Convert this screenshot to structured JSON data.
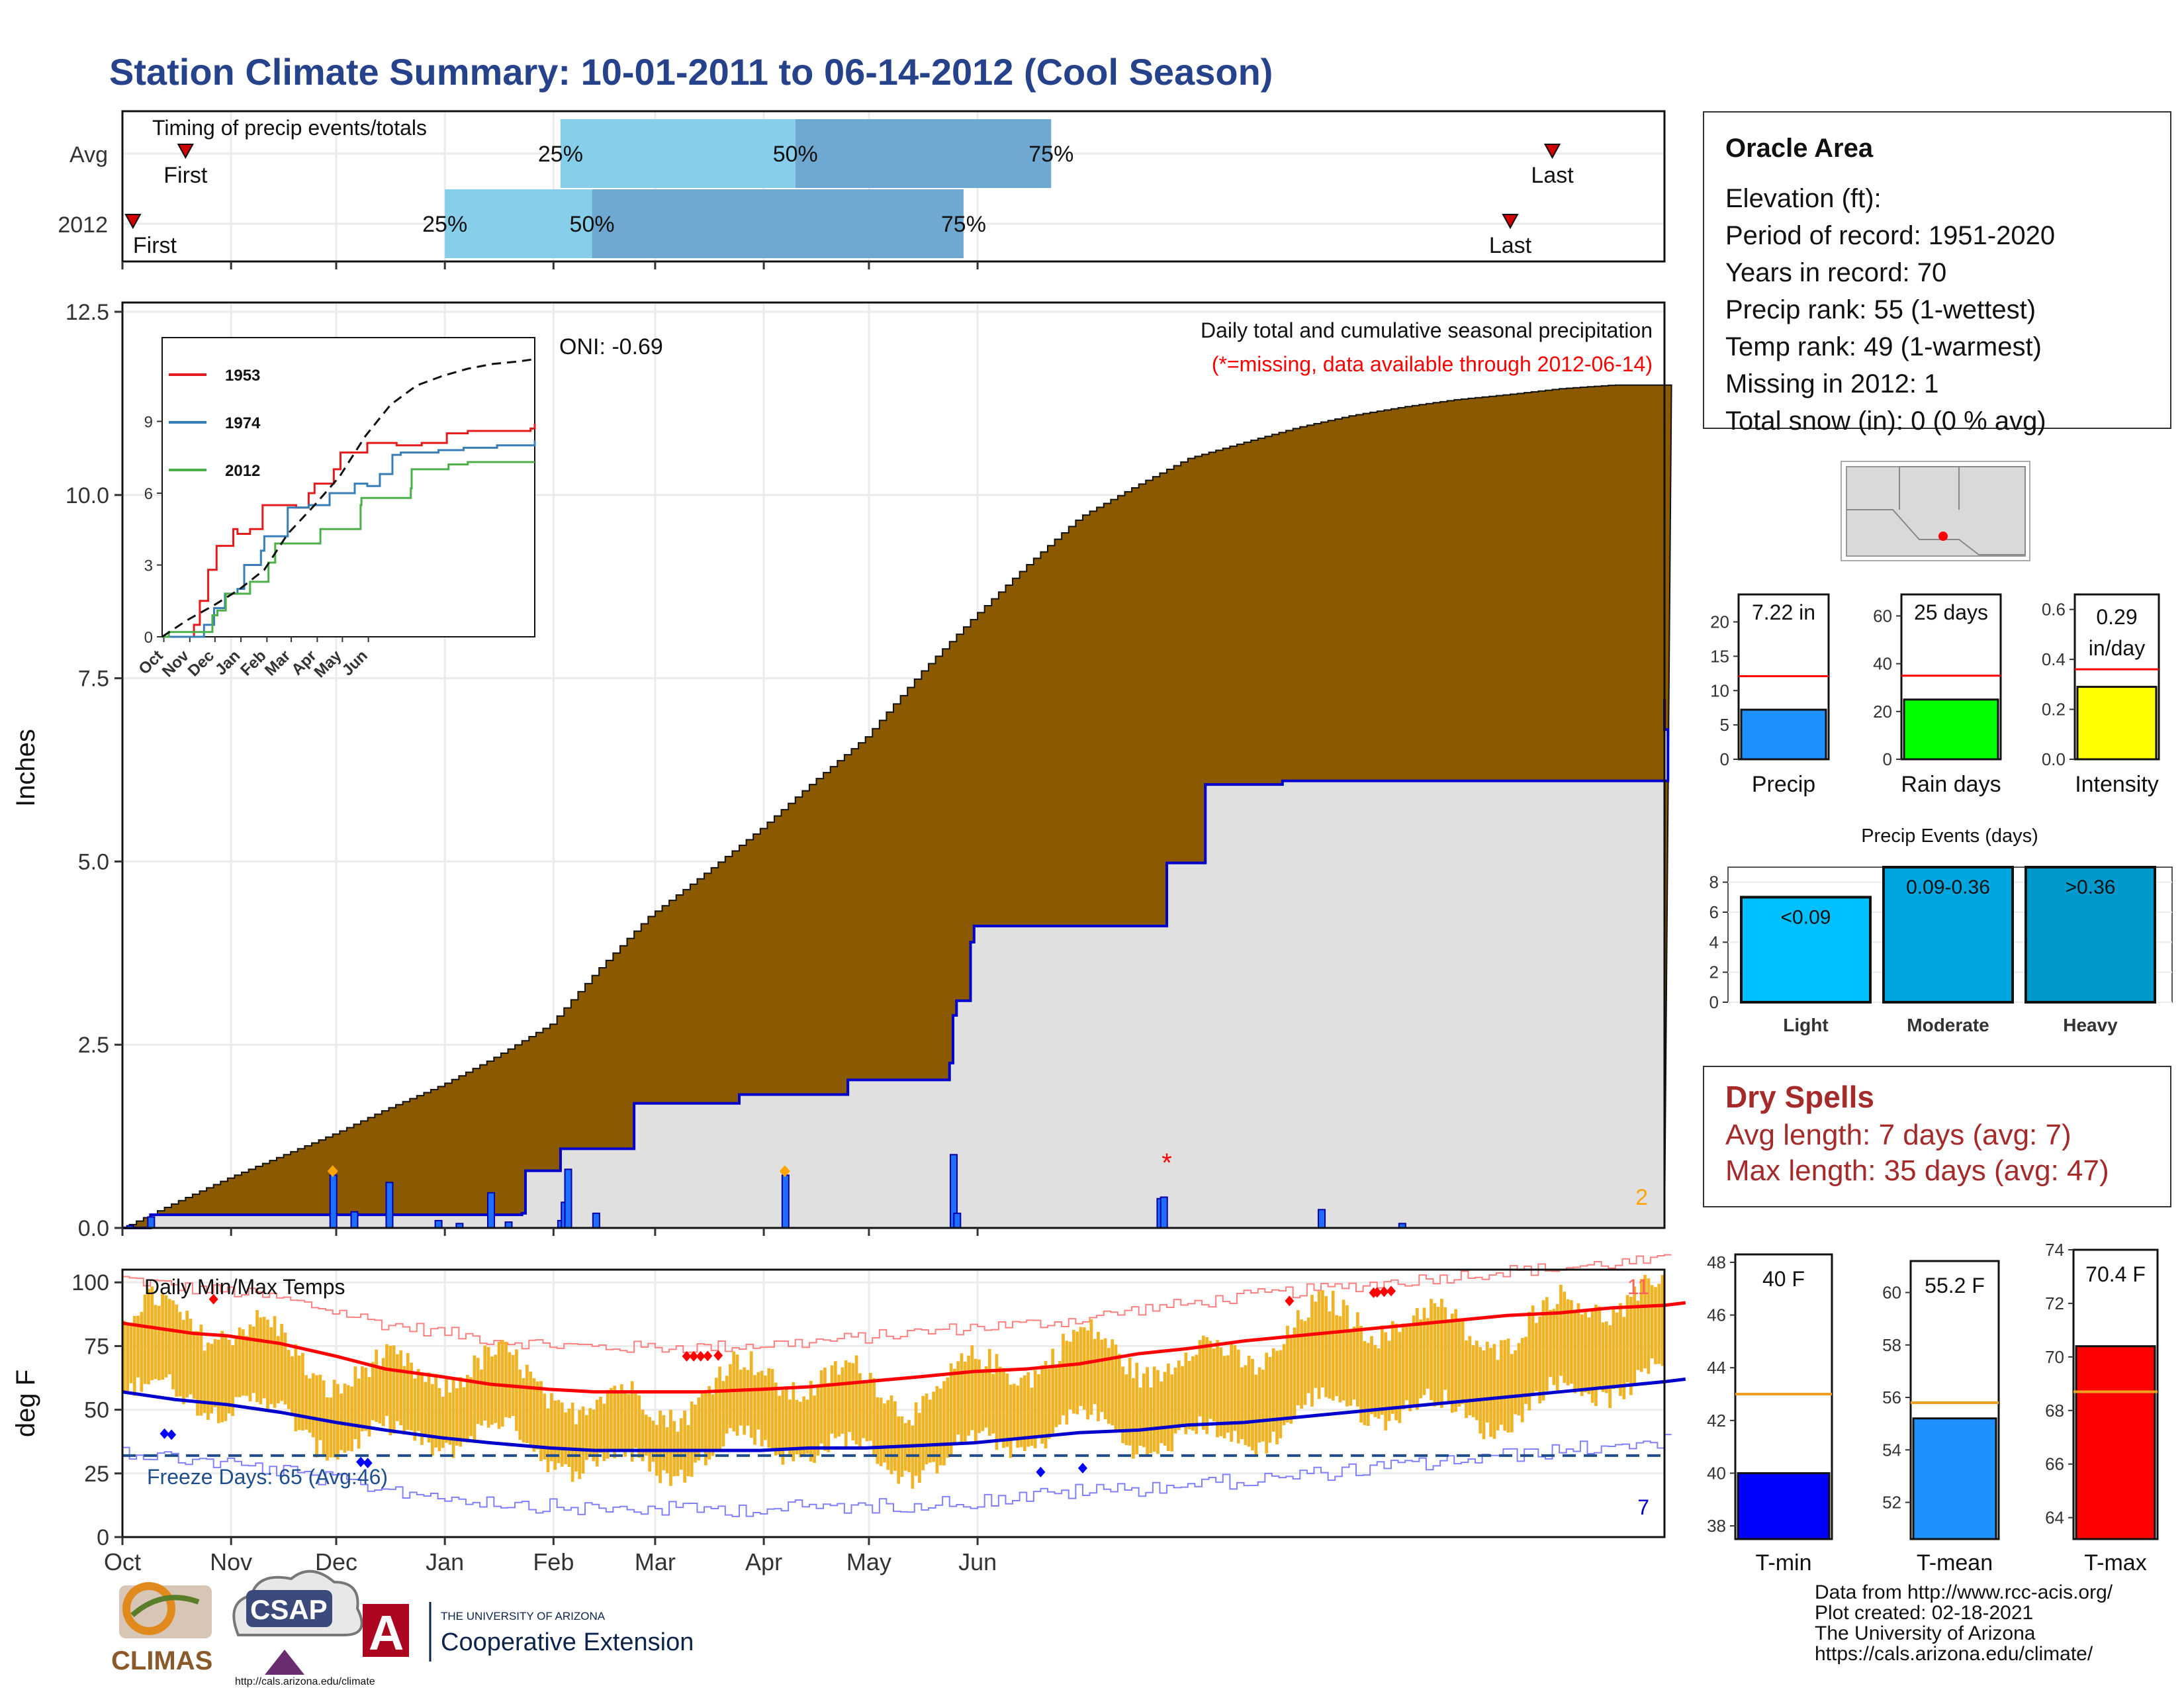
{
  "title": "Station Climate Summary: 10-01-2011 to 06-14-2012 (Cool Season)",
  "timing_panel": {
    "label": "Timing of precip events/totals",
    "rows": [
      {
        "name": "Avg",
        "first_label": "First",
        "first_day": 18,
        "q25_label": "25%",
        "q25_day": 125,
        "q50_label": "50%",
        "q50_day": 192,
        "q75_label": "75%",
        "q75_day": 265,
        "last_label": "Last",
        "last_day": 408
      },
      {
        "name": "2012",
        "first_label": "First",
        "first_day": 3,
        "q25_label": "25%",
        "q25_day": 92,
        "q50_label": "50%",
        "q50_day": 134,
        "q75_label": "75%",
        "q75_day": 240,
        "last_label": "Last",
        "last_day": 396
      }
    ]
  },
  "station_info": {
    "name": "Oracle Area",
    "lines": [
      "Elevation (ft):",
      "Period of record: 1951-2020",
      "Years in record: 70",
      "Precip rank: 55 (1-wettest)",
      "Temp rank: 49 (1-warmest)",
      "Missing in 2012: 1",
      "Total snow (in): 0 (0 % avg)"
    ]
  },
  "dry_spells": {
    "title": "Dry Spells",
    "avg_line": "Avg length: 7 days (avg: 7)",
    "max_line": "Max length: 35 days (avg: 47)"
  },
  "footer": {
    "lines": [
      "Data from http://www.rcc-acis.org/",
      "Plot created: 02-18-2021",
      "The University of Arizona",
      "https://cals.arizona.edu/climate/"
    ],
    "logos": {
      "climas": "CLIMAS",
      "csap": "CSAP",
      "csap_url": "http://cals.arizona.edu/climate",
      "ua_letter": "A",
      "ua_small": "THE UNIVERSITY OF ARIZONA",
      "ua_big": "Cooperative Extension"
    }
  },
  "colors": {
    "title": "#26428b",
    "cum_avg_fill": "#8b5a00",
    "cum_season_fill": "#e0e0e0",
    "cum_line": "#0000cc",
    "above_avg_fill": "#008000",
    "temp_bar": "#f0b323",
    "max_line": "#ff0000",
    "min_line": "#0000cc",
    "quartile_light": "#87ceeb",
    "quartile_dark": "#6fa8d0"
  },
  "chart_data": [
    {
      "id": "cumulative_precip",
      "type": "area",
      "subtitle": "Daily total and cumulative seasonal precipitation",
      "note": "(*=missing, data available through 2012-06-14)",
      "oni_label": "ONI: -0.69",
      "ylabel": "Inches",
      "ylim": [
        0,
        12.5
      ],
      "yticks": [
        0.0,
        2.5,
        5.0,
        7.5,
        10.0,
        12.5
      ],
      "x_months": [
        "Oct",
        "Nov",
        "Dec",
        "Jan",
        "Feb",
        "Mar",
        "Apr",
        "May",
        "Jun"
      ],
      "avg_cumulative": {
        "x": [
          0,
          15,
          30,
          45,
          61,
          75,
          91,
          105,
          122,
          135,
          150,
          165,
          182,
          196,
          212,
          228,
          243,
          258,
          273,
          290,
          304,
          320,
          335,
          350,
          365,
          380,
          395,
          410,
          425
        ],
        "y": [
          0.0,
          0.35,
          0.68,
          0.98,
          1.3,
          1.62,
          1.95,
          2.3,
          2.78,
          3.5,
          4.25,
          4.8,
          5.45,
          6.05,
          6.7,
          7.6,
          8.35,
          9.05,
          9.7,
          10.15,
          10.5,
          10.72,
          10.92,
          11.08,
          11.2,
          11.3,
          11.37,
          11.45,
          11.5
        ]
      },
      "season_cumulative": {
        "x": [
          0,
          8,
          114,
          115,
          124,
          125,
          145,
          146,
          175,
          176,
          206,
          207,
          235,
          236,
          237,
          238,
          242,
          243,
          297,
          298,
          308,
          309,
          330,
          331,
          440,
          441,
          440
        ],
        "y": [
          0.0,
          0.18,
          0.2,
          0.78,
          0.78,
          1.08,
          1.08,
          1.7,
          1.7,
          1.82,
          1.82,
          2.02,
          2.02,
          2.25,
          2.9,
          3.1,
          3.9,
          4.12,
          4.12,
          4.98,
          4.98,
          6.05,
          6.05,
          6.1,
          6.1,
          6.8,
          7.22
        ]
      },
      "daily_events": [
        {
          "day": 2,
          "value": 0.03
        },
        {
          "day": 8,
          "value": 0.15
        },
        {
          "day": 60,
          "value": 0.72
        },
        {
          "day": 66,
          "value": 0.22
        },
        {
          "day": 76,
          "value": 0.62
        },
        {
          "day": 90,
          "value": 0.1
        },
        {
          "day": 96,
          "value": 0.06
        },
        {
          "day": 105,
          "value": 0.48
        },
        {
          "day": 110,
          "value": 0.08
        },
        {
          "day": 125,
          "value": 0.1
        },
        {
          "day": 126,
          "value": 0.35
        },
        {
          "day": 127,
          "value": 0.8
        },
        {
          "day": 135,
          "value": 0.2
        },
        {
          "day": 189,
          "value": 0.72
        },
        {
          "day": 237,
          "value": 1.0
        },
        {
          "day": 238,
          "value": 0.2
        },
        {
          "day": 296,
          "value": 0.4
        },
        {
          "day": 297,
          "value": 0.42
        },
        {
          "day": 342,
          "value": 0.25
        },
        {
          "day": 365,
          "value": 0.06
        }
      ],
      "record_markers_days": [
        60,
        189
      ],
      "missing_day": 298,
      "missing_label": "*",
      "right_count_label": "2",
      "inset": {
        "xlabels": [
          "Oct",
          "Nov",
          "Dec",
          "Jan",
          "Feb",
          "Mar",
          "Apr",
          "May",
          "Jun"
        ],
        "yticks": [
          0,
          3,
          6,
          9
        ],
        "ylim": [
          0,
          12.5
        ],
        "series": [
          {
            "name": "1953",
            "color": "#e41a1c",
            "x": [
              0,
              35,
              38,
              45,
              55,
              60,
              65,
              75,
              85,
              90,
              105,
              120,
              138,
              160,
              175,
              182,
              205,
              213,
              245,
              280,
              310,
              340,
              365,
              395,
              440,
              445
            ],
            "y": [
              0,
              0,
              0.5,
              1.5,
              2.8,
              2.8,
              3.8,
              3.8,
              4.5,
              4.3,
              4.5,
              5.5,
              5.5,
              5.4,
              6.0,
              6.4,
              7.0,
              7.7,
              8.1,
              8.0,
              8.1,
              8.5,
              8.6,
              8.6,
              8.7,
              8.9
            ]
          },
          {
            "name": "1974",
            "color": "#377eb8",
            "x": [
              0,
              45,
              50,
              62,
              75,
              90,
              98,
              118,
              122,
              150,
              175,
              200,
              230,
              245,
              260,
              275,
              285,
              300,
              330,
              360,
              400,
              445
            ],
            "y": [
              0,
              0,
              0.5,
              1.2,
              1.8,
              2.0,
              3.0,
              3.6,
              4.2,
              5.4,
              5.5,
              6.0,
              6.4,
              6.3,
              6.8,
              7.6,
              7.7,
              7.7,
              7.8,
              7.9,
              8.0,
              8.2
            ]
          },
          {
            "name": "2012",
            "color": "#4daf4a",
            "x": [
              0,
              8,
              60,
              66,
              76,
              105,
              127,
              135,
              189,
              237,
              238,
              297,
              298,
              342,
              365,
              445
            ],
            "y": [
              0,
              0.2,
              0.9,
              1.1,
              1.8,
              2.3,
              3.1,
              3.9,
              4.5,
              5.5,
              5.8,
              6.2,
              7.0,
              7.2,
              7.3,
              7.3
            ]
          }
        ],
        "avg_cumulative": {
          "x": [
            0,
            30,
            61,
            91,
            122,
            150,
            182,
            212,
            243,
            273,
            304,
            335,
            365,
            395,
            425,
            445
          ],
          "y": [
            0,
            0.7,
            1.3,
            1.95,
            2.8,
            4.3,
            5.5,
            6.7,
            8.4,
            9.7,
            10.5,
            10.9,
            11.2,
            11.4,
            11.5,
            11.6
          ]
        }
      }
    },
    {
      "id": "daily_temps",
      "type": "bar",
      "label": "Daily Min/Max Temps",
      "ylabel": "deg F",
      "ylim": [
        0,
        105
      ],
      "yticks": [
        0,
        25,
        50,
        75,
        100
      ],
      "x_months": [
        "Oct",
        "Nov",
        "Dec",
        "Jan",
        "Feb",
        "Mar",
        "Apr",
        "May",
        "Jun"
      ],
      "freeze_label": "Freeze Days: 65 (Avg:46)",
      "freeze_line": 32,
      "avg_max": {
        "x": [
          0,
          10,
          20,
          30,
          45,
          61,
          75,
          91,
          105,
          122,
          135,
          150,
          165,
          182,
          196,
          212,
          228,
          243,
          258,
          273,
          290,
          304,
          320,
          335,
          350,
          365,
          380,
          395,
          410,
          425,
          440,
          446
        ],
        "y": [
          84,
          82,
          80,
          79,
          76,
          71,
          66,
          63,
          60,
          58,
          57,
          57,
          57,
          58,
          59,
          61,
          63,
          65,
          66,
          68,
          72,
          74,
          77,
          79,
          81,
          83,
          85,
          87,
          88,
          90,
          91,
          92
        ]
      },
      "avg_min": {
        "x": [
          0,
          15,
          30,
          45,
          61,
          75,
          91,
          105,
          122,
          135,
          150,
          165,
          182,
          196,
          212,
          228,
          243,
          258,
          273,
          290,
          304,
          320,
          335,
          350,
          365,
          380,
          395,
          410,
          425,
          440,
          446
        ],
        "y": [
          57,
          54,
          52,
          49,
          45,
          42,
          39,
          37,
          35,
          34,
          34,
          34,
          34,
          35,
          35,
          36,
          37,
          39,
          41,
          42,
          44,
          45,
          47,
          49,
          51,
          53,
          55,
          57,
          59,
          61,
          62
        ]
      },
      "record_high_days": [
        26,
        161,
        163,
        165,
        167,
        170,
        333,
        357,
        358,
        360,
        362
      ],
      "record_low_days": [
        12,
        14,
        68,
        70,
        262,
        274
      ],
      "right_top_label": "11",
      "right_bottom_label": "7"
    },
    {
      "id": "precip_summary",
      "type": "bar",
      "panels": [
        {
          "label": "Precip",
          "value": 7.22,
          "value_label": "7.22 in",
          "avg": 12.1,
          "ylim": [
            0,
            24
          ],
          "yticks": [
            0,
            5,
            10,
            15,
            20
          ],
          "color": "#1e90ff"
        },
        {
          "label": "Rain days",
          "value": 25,
          "value_label": "25 days",
          "avg": 35,
          "ylim": [
            0,
            69
          ],
          "yticks": [
            0,
            20,
            40,
            60
          ],
          "color": "#00ff00"
        },
        {
          "label": "Intensity",
          "value": 0.29,
          "value_label": "0.29 in/day",
          "avg": 0.36,
          "ylim": [
            0,
            0.66
          ],
          "yticks": [
            0.0,
            0.2,
            0.4,
            0.6
          ],
          "color": "#ffff00"
        }
      ]
    },
    {
      "id": "precip_events",
      "type": "bar",
      "title": "Precip Events (days)",
      "categories": [
        "Light",
        "Moderate",
        "Heavy"
      ],
      "bar_labels": [
        "<0.09",
        "0.09-0.36",
        ">0.36"
      ],
      "values": [
        7,
        9,
        9
      ],
      "ylim": [
        0,
        9
      ],
      "yticks": [
        0,
        2,
        4,
        6,
        8
      ],
      "colors": [
        "#00bfff",
        "#00a6e0",
        "#0099cc"
      ]
    },
    {
      "id": "temp_summary",
      "type": "bar",
      "panels": [
        {
          "label": "T-min",
          "value": 40.0,
          "value_label": "40 F",
          "avg": 43,
          "ylim": [
            37.5,
            48.3
          ],
          "yticks": [
            38,
            40,
            42,
            44,
            46,
            48
          ],
          "color": "#0000ff"
        },
        {
          "label": "T-mean",
          "value": 55.2,
          "value_label": "55.2 F",
          "avg": 55.8,
          "ylim": [
            50.6,
            61.2
          ],
          "yticks": [
            52,
            54,
            56,
            58,
            60
          ],
          "color": "#1e90ff"
        },
        {
          "label": "T-max",
          "value": 70.4,
          "value_label": "70.4 F",
          "avg": 68.7,
          "ylim": [
            63.2,
            74.0
          ],
          "yticks": [
            64,
            66,
            68,
            70,
            72,
            74
          ],
          "color": "#ff0000"
        }
      ]
    }
  ]
}
